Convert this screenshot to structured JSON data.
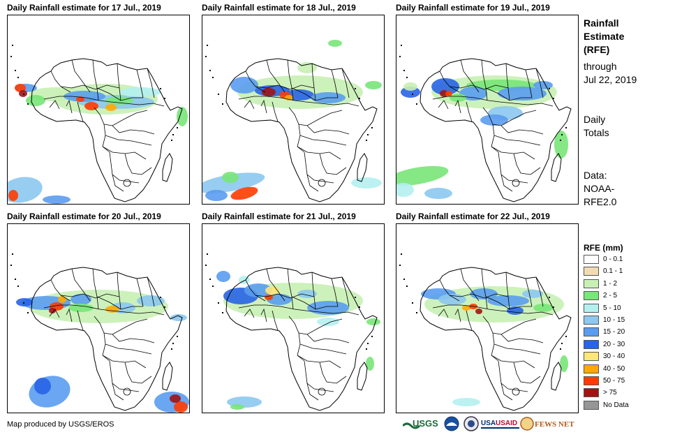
{
  "panels": [
    {
      "title": "Daily Rainfall estimate for 17 Jul., 2019"
    },
    {
      "title": "Daily Rainfall estimate for 18 Jul., 2019"
    },
    {
      "title": "Daily Rainfall estimate for 19 Jul., 2019"
    },
    {
      "title": "Daily Rainfall estimate for 20 Jul., 2019"
    },
    {
      "title": "Daily Rainfall estimate for 21 Jul., 2019"
    },
    {
      "title": "Daily Rainfall estimate for 22 Jul., 2019"
    }
  ],
  "sidebar": {
    "heading": [
      "Rainfall",
      "Estimate",
      "(RFE)"
    ],
    "through": [
      "through",
      "Jul 22, 2019"
    ],
    "daily": [
      "Daily",
      "Totals"
    ],
    "data_source": [
      "Data:",
      "NOAA-",
      "RFE2.0"
    ]
  },
  "legend": {
    "title": "RFE (mm)",
    "items": [
      {
        "label": "0 - 0.1",
        "color": "#ffffff"
      },
      {
        "label": "0.1 - 1",
        "color": "#f0dcb4"
      },
      {
        "label": "1 - 2",
        "color": "#c8f0b4"
      },
      {
        "label": "2 - 5",
        "color": "#78e678"
      },
      {
        "label": "5 - 10",
        "color": "#b4f0f0"
      },
      {
        "label": "10 - 15",
        "color": "#8cc8f0"
      },
      {
        "label": "15 - 20",
        "color": "#5a9cf0"
      },
      {
        "label": "20 - 30",
        "color": "#2864e6"
      },
      {
        "label": "30 - 40",
        "color": "#ffe678"
      },
      {
        "label": "40 - 50",
        "color": "#ffaa00"
      },
      {
        "label": "50 - 75",
        "color": "#ff3c00"
      },
      {
        "label": "> 75",
        "color": "#a01414"
      },
      {
        "label": "No Data",
        "color": "#969696"
      }
    ]
  },
  "footer": {
    "credit": "Map produced by USGS/EROS",
    "logos": [
      "USGS",
      "NOAA",
      "USA",
      "USAID",
      "FEWS NET"
    ]
  }
}
